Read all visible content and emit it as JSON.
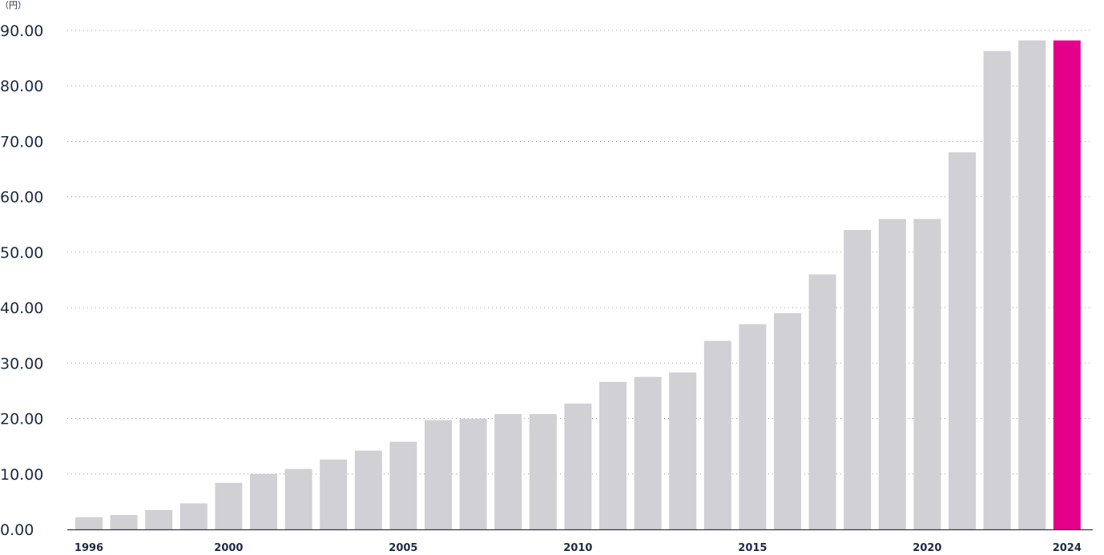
{
  "chart_data": {
    "type": "bar",
    "unit_label": "（円）",
    "categories": [
      "1996",
      "1997",
      "1998",
      "1999",
      "2000",
      "2001",
      "2002",
      "2003",
      "2004",
      "2005",
      "2006",
      "2007",
      "2008",
      "2009",
      "2010",
      "2011",
      "2012",
      "2013",
      "2014",
      "2015",
      "2016",
      "2017",
      "2018",
      "2019",
      "2020",
      "2021",
      "2022",
      "2023",
      "2024"
    ],
    "values": [
      2.2,
      2.6,
      3.5,
      4.7,
      8.4,
      10.0,
      10.9,
      12.6,
      14.2,
      15.8,
      19.7,
      20.0,
      20.8,
      20.8,
      22.7,
      26.6,
      27.5,
      28.3,
      34.0,
      37.0,
      39.0,
      46.0,
      54.0,
      56.0,
      56.0,
      68.0,
      86.3,
      88.2,
      88.2
    ],
    "x_tick_labels": [
      "1996",
      "2000",
      "2005",
      "2010",
      "2015",
      "2020",
      "2024"
    ],
    "y_tick_labels": [
      "0.00",
      "10.00",
      "20.00",
      "30.00",
      "40.00",
      "50.00",
      "60.00",
      "70.00",
      "80.00",
      "90.00"
    ],
    "ylim": [
      0,
      90
    ],
    "grid": true,
    "highlight_category": "2024",
    "colors": {
      "bar": "#d0d0d5",
      "highlight": "#e5008b"
    }
  }
}
